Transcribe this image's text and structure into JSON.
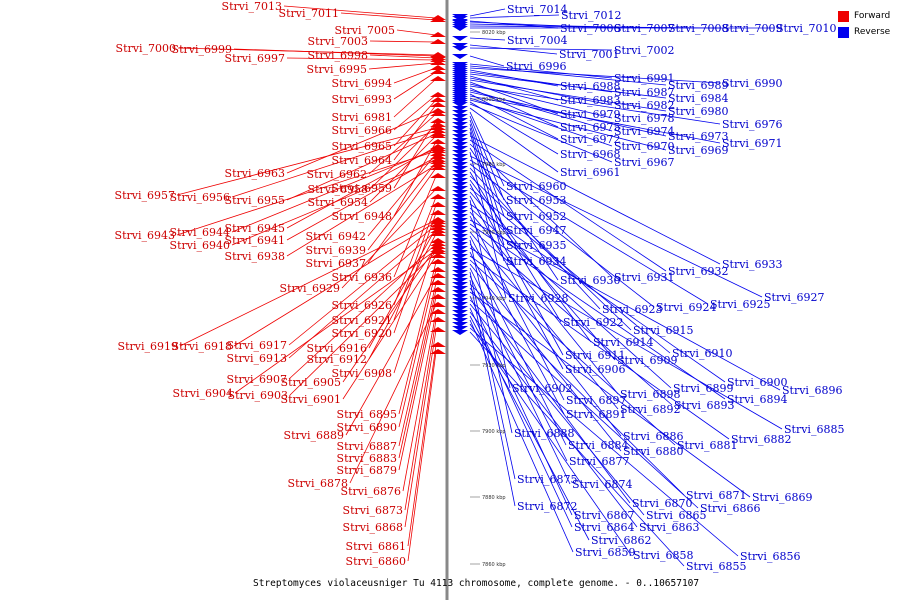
{
  "caption": "Streptomyces violaceusniger Tu 4113 chromosome, complete genome. - 0..10657107",
  "legend": [
    {
      "label": "Forward",
      "color": "#ee0000"
    },
    {
      "label": "Reverse",
      "color": "#0000ee"
    }
  ],
  "colors": {
    "forward": "#ee0000",
    "reverse": "#0000ee",
    "forward_label": "#cc0000",
    "reverse_label": "#0000cc",
    "axis": "#888888"
  },
  "ticks": [
    "8020 kbp",
    "8000 kbp",
    "7980 kbp",
    "7960 kbp",
    "7940 kbp",
    "7920 kbp",
    "7900 kbp",
    "7880 kbp",
    "7860 kbp"
  ],
  "forward_genes": [
    "Strvi_7013",
    "Strvi_7011",
    "Strvi_7005",
    "Strvi_7003",
    "Strvi_7000",
    "Strvi_6999",
    "Strvi_6998",
    "Strvi_6997",
    "Strvi_6995",
    "Strvi_6994",
    "Strvi_6993",
    "Strvi_6981",
    "Strvi_6966",
    "Strvi_6965",
    "Strvi_6964",
    "Strvi_6963",
    "Strvi_6962",
    "Strvi_6959",
    "Strvi_6958",
    "Strvi_6957",
    "Strvi_6956",
    "Strvi_6955",
    "Strvi_6954",
    "Strvi_6948",
    "Strvi_6945",
    "Strvi_6944",
    "Strvi_6943",
    "Strvi_6942",
    "Strvi_6941",
    "Strvi_6940",
    "Strvi_6939",
    "Strvi_6938",
    "Strvi_6937",
    "Strvi_6936",
    "Strvi_6929",
    "Strvi_6926",
    "Strvi_6921",
    "Strvi_6920",
    "Strvi_6919",
    "Strvi_6918",
    "Strvi_6917",
    "Strvi_6916",
    "Strvi_6913",
    "Strvi_6912",
    "Strvi_6908",
    "Strvi_6907",
    "Strvi_6905",
    "Strvi_6904",
    "Strvi_6903",
    "Strvi_6901",
    "Strvi_6895",
    "Strvi_6890",
    "Strvi_6889",
    "Strvi_6887",
    "Strvi_6883",
    "Strvi_6879",
    "Strvi_6878",
    "Strvi_6876",
    "Strvi_6873",
    "Strvi_6868",
    "Strvi_6861",
    "Strvi_6860"
  ],
  "reverse_genes": [
    "Strvi_7014",
    "Strvi_7012",
    "Strvi_7006",
    "Strvi_7007",
    "Strvi_7008",
    "Strvi_7009",
    "Strvi_7010",
    "Strvi_7004",
    "Strvi_7001",
    "Strvi_7002",
    "Strvi_6996",
    "Strvi_6991",
    "Strvi_6989",
    "Strvi_6990",
    "Strvi_6988",
    "Strvi_6987",
    "Strvi_6984",
    "Strvi_6983",
    "Strvi_6982",
    "Strvi_6980",
    "Strvi_6979",
    "Strvi_6978",
    "Strvi_6976",
    "Strvi_6975",
    "Strvi_6974",
    "Strvi_6973",
    "Strvi_6972",
    "Strvi_6971",
    "Strvi_6970",
    "Strvi_6969",
    "Strvi_6968",
    "Strvi_6967",
    "Strvi_6961",
    "Strvi_6960",
    "Strvi_6953",
    "Strvi_6952",
    "Strvi_6947",
    "Strvi_6935",
    "Strvi_6934",
    "Strvi_6933",
    "Strvi_6932",
    "Strvi_6931",
    "Strvi_6930",
    "Strvi_6928",
    "Strvi_6927",
    "Strvi_6925",
    "Strvi_6924",
    "Strvi_6923",
    "Strvi_6922",
    "Strvi_6915",
    "Strvi_6914",
    "Strvi_6911",
    "Strvi_6910",
    "Strvi_6909",
    "Strvi_6906",
    "Strvi_6902",
    "Strvi_6900",
    "Strvi_6899",
    "Strvi_6898",
    "Strvi_6897",
    "Strvi_6896",
    "Strvi_6894",
    "Strvi_6893",
    "Strvi_6892",
    "Strvi_6891",
    "Strvi_6888",
    "Strvi_6886",
    "Strvi_6885",
    "Strvi_6884",
    "Strvi_6882",
    "Strvi_6881",
    "Strvi_6880",
    "Strvi_6877",
    "Strvi_6875",
    "Strvi_6874",
    "Strvi_6872",
    "Strvi_6871",
    "Strvi_6870",
    "Strvi_6869",
    "Strvi_6867",
    "Strvi_6866",
    "Strvi_6865",
    "Strvi_6864",
    "Strvi_6863",
    "Strvi_6862",
    "Strvi_6859",
    "Strvi_6858",
    "Strvi_6856",
    "Strvi_6855"
  ]
}
